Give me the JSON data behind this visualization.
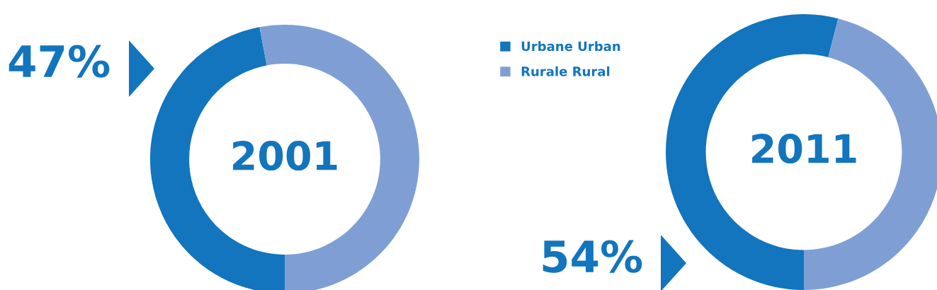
{
  "chart_data": [
    {
      "type": "donut",
      "title": "2001",
      "categories": [
        "Urbane Urban",
        "Rurale Rural"
      ],
      "values": [
        47,
        53
      ],
      "colors": [
        "#1275bd",
        "#7f9fd4"
      ],
      "value_labels": [
        "47%",
        null
      ],
      "legend": "top right"
    },
    {
      "type": "donut",
      "title": "2011",
      "categories": [
        null,
        null
      ],
      "values": [
        54,
        46
      ],
      "colors": [
        "#1275bd",
        "#7f9fd4"
      ],
      "value_labels": [
        "54%",
        null
      ]
    }
  ]
}
